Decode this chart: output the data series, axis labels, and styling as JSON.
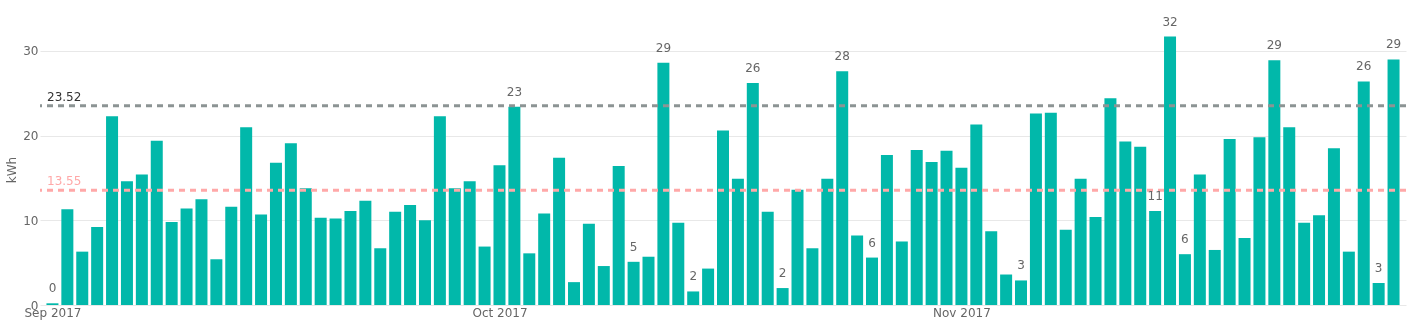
{
  "chart_data": {
    "type": "bar",
    "ylabel": "kWh",
    "color": "#01b8aa",
    "x": [
      "2017-09-01",
      "2017-09-02",
      "2017-09-03",
      "2017-09-04",
      "2017-09-05",
      "2017-09-06",
      "2017-09-07",
      "2017-09-08",
      "2017-09-09",
      "2017-09-10",
      "2017-09-11",
      "2017-09-12",
      "2017-09-13",
      "2017-09-14",
      "2017-09-15",
      "2017-09-16",
      "2017-09-17",
      "2017-09-18",
      "2017-09-19",
      "2017-09-20",
      "2017-09-21",
      "2017-09-22",
      "2017-09-23",
      "2017-09-24",
      "2017-09-25",
      "2017-09-26",
      "2017-09-27",
      "2017-09-28",
      "2017-09-29",
      "2017-09-30",
      "2017-10-01",
      "2017-10-02",
      "2017-10-03",
      "2017-10-04",
      "2017-10-05",
      "2017-10-06",
      "2017-10-07",
      "2017-10-08",
      "2017-10-09",
      "2017-10-10",
      "2017-10-11",
      "2017-10-12",
      "2017-10-13",
      "2017-10-14",
      "2017-10-15",
      "2017-10-16",
      "2017-10-17",
      "2017-10-18",
      "2017-10-19",
      "2017-10-20",
      "2017-10-21",
      "2017-10-22",
      "2017-10-23",
      "2017-10-24",
      "2017-10-25",
      "2017-10-26",
      "2017-10-27",
      "2017-10-28",
      "2017-10-29",
      "2017-10-30",
      "2017-10-31",
      "2017-11-01",
      "2017-11-02",
      "2017-11-03",
      "2017-11-04",
      "2017-11-05",
      "2017-11-06",
      "2017-11-07",
      "2017-11-08",
      "2017-11-09",
      "2017-11-10",
      "2017-11-11",
      "2017-11-12",
      "2017-11-13",
      "2017-11-14",
      "2017-11-15",
      "2017-11-16",
      "2017-11-17",
      "2017-11-18",
      "2017-11-19",
      "2017-11-20",
      "2017-11-21",
      "2017-11-22",
      "2017-11-23",
      "2017-11-24",
      "2017-11-25",
      "2017-11-26",
      "2017-11-27",
      "2017-11-28",
      "2017-11-29",
      "2017-11-30"
    ],
    "values": [
      0.2,
      11.3,
      6.3,
      9.2,
      22.3,
      14.6,
      15.4,
      19.4,
      9.8,
      11.4,
      12.5,
      5.4,
      11.6,
      21.0,
      10.7,
      16.8,
      19.1,
      13.8,
      10.3,
      10.2,
      11.1,
      12.3,
      6.7,
      11.0,
      11.8,
      10.0,
      22.3,
      13.8,
      14.6,
      6.9,
      16.5,
      23.4,
      6.1,
      10.8,
      17.4,
      2.7,
      9.6,
      4.6,
      16.4,
      5.1,
      5.7,
      28.6,
      9.7,
      1.6,
      4.3,
      20.6,
      14.9,
      26.2,
      11.0,
      2.0,
      13.6,
      6.7,
      14.9,
      27.6,
      8.2,
      5.6,
      17.7,
      7.5,
      18.3,
      16.9,
      18.2,
      16.2,
      21.3,
      8.7,
      3.6,
      2.9,
      22.6,
      22.7,
      8.9,
      14.9,
      10.4,
      24.4,
      19.3,
      18.7,
      11.1,
      31.7,
      6.0,
      15.4,
      6.5,
      19.6,
      7.9,
      19.8,
      28.9,
      21.0,
      9.7,
      10.6,
      18.5,
      6.3,
      26.4,
      2.6,
      29.0
    ],
    "value_labels": [
      "0",
      null,
      null,
      null,
      null,
      null,
      null,
      null,
      null,
      null,
      null,
      null,
      null,
      null,
      null,
      null,
      null,
      null,
      null,
      null,
      null,
      null,
      null,
      null,
      null,
      null,
      null,
      null,
      null,
      null,
      null,
      "23",
      null,
      null,
      null,
      null,
      null,
      null,
      null,
      "5",
      null,
      "29",
      null,
      "2",
      null,
      null,
      null,
      "26",
      null,
      "2",
      null,
      null,
      null,
      "28",
      null,
      "6",
      null,
      null,
      null,
      null,
      null,
      null,
      null,
      null,
      null,
      "3",
      null,
      null,
      null,
      null,
      null,
      null,
      null,
      null,
      "11",
      "32",
      "6",
      null,
      null,
      null,
      null,
      null,
      "29",
      null,
      null,
      null,
      null,
      null,
      "26",
      "3",
      "29"
    ],
    "xlim": [
      "2017-08-31T12:00",
      "2017-11-30T12:00"
    ],
    "xticks": [
      {
        "value": "2017-09-01",
        "label": "Sep 2017"
      },
      {
        "value": "2017-10-01",
        "label": "Oct 2017"
      },
      {
        "value": "2017-11-01",
        "label": "Nov 2017"
      }
    ],
    "ylim": [
      0,
      32
    ],
    "yticks": [
      0,
      10,
      20,
      30
    ],
    "grid": "y",
    "ref_lines": [
      {
        "axis": "y",
        "value": 23.52,
        "label": "23.52",
        "color": "#8c9494",
        "line_style": "dashed"
      },
      {
        "axis": "y",
        "value": 13.55,
        "label": "13.55",
        "color": "#ffa8a8",
        "line_style": "dashed"
      }
    ]
  }
}
